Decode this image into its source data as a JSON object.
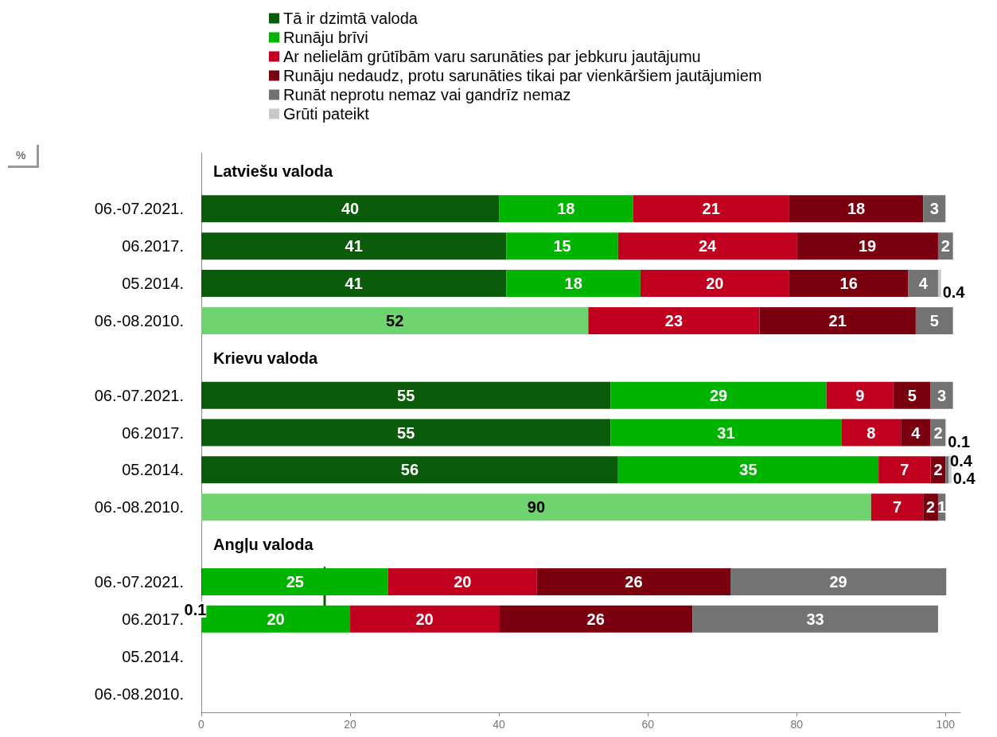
{
  "chart_data": {
    "type": "bar",
    "orientation": "horizontal",
    "stacked": true,
    "categories": [
      null,
      "06.-07.2021.",
      "06.2017.",
      "05.2014.",
      "06.-08.2010.",
      null,
      "06.-07.2021.",
      "06.2017.",
      "05.2014.",
      "06.-08.2010.",
      null,
      "06.-07.2021.",
      "06.2017.",
      "05.2014.",
      "06.-08.2010."
    ],
    "annotations": [
      "Latviešu valoda",
      "Krievu valoda",
      "Angļu valoda",
      "%"
    ],
    "series": [
      {
        "name": "Tā ir dzimtā valoda",
        "color": "#0a5c0a",
        "values": [
          null,
          40,
          41,
          41,
          null,
          null,
          55,
          55,
          56,
          null,
          null,
          0.1,
          null,
          null,
          null
        ]
      },
      {
        "color": "#6fd46f",
        "values": [
          null,
          null,
          null,
          null,
          52,
          null,
          null,
          null,
          null,
          90,
          null,
          null,
          null,
          null,
          null
        ]
      },
      {
        "name": "Runāju brīvi",
        "color": "#00b400",
        "values": [
          null,
          18,
          15,
          18,
          null,
          null,
          29,
          31,
          35,
          null,
          null,
          25,
          20,
          null,
          null
        ]
      },
      {
        "name": "Ar nelielām grūtībām varu sarunāties par jebkuru jautājumu",
        "color": "#c0001e",
        "values": [
          null,
          21,
          24,
          20,
          23,
          null,
          9,
          8,
          7,
          7,
          null,
          20,
          20,
          null,
          null
        ]
      },
      {
        "name": "Runāju nedaudz, protu sarunāties tikai par vienkāršiem jautājumiem",
        "color": "#7a0010",
        "values": [
          null,
          18,
          19,
          16,
          21,
          null,
          5,
          4,
          2,
          2,
          null,
          26,
          26,
          null,
          null
        ]
      },
      {
        "name": "Runāt neprotu nemaz vai gandrīz nemaz",
        "color": "#737373",
        "values": [
          null,
          3,
          2,
          4,
          5,
          null,
          3,
          2,
          0.4,
          1,
          null,
          29,
          33,
          null,
          null
        ]
      },
      {
        "name": "Grūti pateikt",
        "color": "#c8c8c8",
        "values": [
          null,
          null,
          null,
          0.4,
          null,
          null,
          null,
          0.1,
          0.4,
          null,
          null,
          null,
          null,
          null,
          null
        ]
      }
    ],
    "xlim": [
      0,
      102
    ],
    "xticks": [
      0,
      20,
      40,
      60,
      80,
      100
    ],
    "data_labels": true,
    "legend": "top",
    "grid": false
  }
}
